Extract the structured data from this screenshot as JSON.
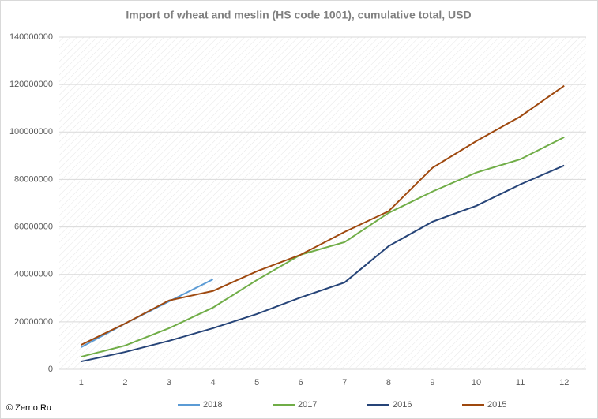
{
  "chart_data": {
    "type": "line",
    "title": "Import of wheat and meslin (HS code 1001), cumulative total, USD",
    "source": "© Zerno.Ru",
    "categories": [
      "1",
      "2",
      "3",
      "4",
      "5",
      "6",
      "7",
      "8",
      "9",
      "10",
      "11",
      "12"
    ],
    "ylim": [
      0,
      140000000
    ],
    "yticks": [
      0,
      20000000,
      40000000,
      60000000,
      80000000,
      100000000,
      120000000,
      140000000
    ],
    "grid": true,
    "legend": "bottom",
    "series": [
      {
        "name": "2018",
        "color": "#5b9bd5",
        "values": [
          9300000,
          19300000,
          28600000,
          37900000,
          null,
          null,
          null,
          null,
          null,
          null,
          null,
          null
        ]
      },
      {
        "name": "2017",
        "color": "#70ad47",
        "values": [
          5300000,
          10000000,
          17300000,
          26000000,
          37600000,
          48300000,
          53600000,
          65900000,
          74900000,
          82900000,
          88500000,
          97800000
        ]
      },
      {
        "name": "2016",
        "color": "#264478",
        "values": [
          3300000,
          7300000,
          12000000,
          17300000,
          23300000,
          30300000,
          36600000,
          51900000,
          62200000,
          68900000,
          77900000,
          85900000
        ]
      },
      {
        "name": "2015",
        "color": "#9e480e",
        "values": [
          10300000,
          19300000,
          29000000,
          33000000,
          41300000,
          48300000,
          57900000,
          66600000,
          84900000,
          96200000,
          106500000,
          119500000
        ]
      }
    ]
  }
}
